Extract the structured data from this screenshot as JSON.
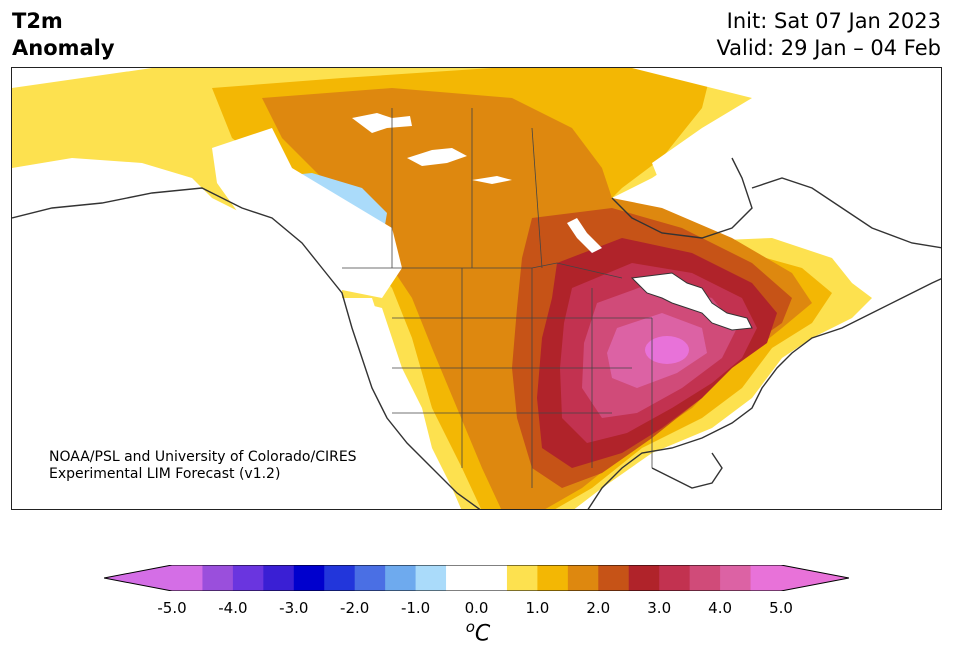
{
  "header": {
    "title_line1": "T2m",
    "title_line2": "Anomaly",
    "init": "Init: Sat 07 Jan 2023",
    "valid": "Valid: 29 Jan – 04 Feb"
  },
  "credit": {
    "line1": "NOAA/PSL and University of Colorado/CIRES",
    "line2": "Experimental LIM Forecast (v1.2)"
  },
  "colorbar": {
    "unit_symbol": "o",
    "unit_letter": "C",
    "ticks": [
      "-5.0",
      "-4.0",
      "-3.0",
      "-2.0",
      "-1.0",
      "0.0",
      "1.0",
      "2.0",
      "3.0",
      "4.0",
      "5.0"
    ],
    "colors": [
      "#d46ee6",
      "#9a4fdc",
      "#6a35df",
      "#3a1fd4",
      "#0000cd",
      "#2236db",
      "#4a6fe4",
      "#6eaaee",
      "#aadbfa",
      "#ffffff",
      "#ffffff",
      "#fde14f",
      "#f3b704",
      "#de880f",
      "#c65317",
      "#b0232a",
      "#c23250",
      "#d04b79",
      "#dc62a4",
      "#e872d9"
    ],
    "arrow_left_color": "#d46ee6",
    "arrow_right_color": "#e872d9"
  },
  "map_colors": {
    "land": "#ffffff",
    "lake": "#ffffff",
    "coast": "#333333"
  }
}
